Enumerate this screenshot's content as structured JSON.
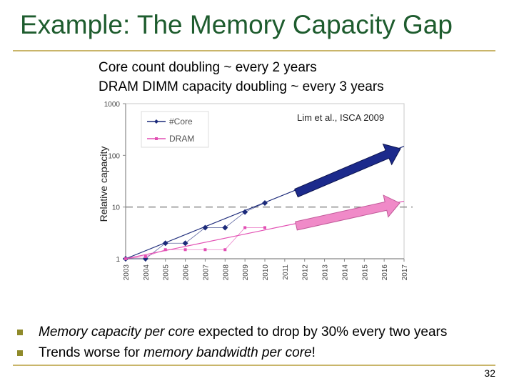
{
  "slide": {
    "title": "Example: The Memory Capacity Gap",
    "subtitle_line1": "Core count doubling ~ every 2 years",
    "subtitle_line2": "DRAM DIMM capacity doubling ~ every 3 years",
    "page_number": "32"
  },
  "bullets": [
    {
      "pre": "",
      "em": "Memory capacity per core",
      "post": " expected to drop by 30% every two years"
    },
    {
      "pre": "Trends worse for ",
      "em": "memory bandwidth per core",
      "post": "!"
    }
  ],
  "colors": {
    "title": "#1e5c2e",
    "core": "#1c2a7a",
    "dram": "#e24fb3",
    "rule": "#c9b56a",
    "bullet": "#8f8a2a"
  },
  "chart_data": {
    "type": "line",
    "title": "",
    "annotation": "Lim et al., ISCA 2009",
    "ylabel": "Relative capacity",
    "xlabel": "",
    "yscale": "log",
    "ylim": [
      1,
      1000
    ],
    "yticks": [
      "1",
      "10",
      "100",
      "1000"
    ],
    "x": [
      "2003",
      "2004",
      "2005",
      "2006",
      "2007",
      "2008",
      "2009",
      "2010",
      "2011",
      "2012",
      "2013",
      "2014",
      "2015",
      "2016",
      "2017"
    ],
    "series": [
      {
        "name": "#Core",
        "x": [
          "2003",
          "2004",
          "2005",
          "2006",
          "2007",
          "2008",
          "2009",
          "2010"
        ],
        "values": [
          1,
          1,
          2,
          2,
          4,
          4,
          8,
          12
        ],
        "trend_end": [
          "2017",
          150
        ]
      },
      {
        "name": "DRAM",
        "x": [
          "2003",
          "2004",
          "2005",
          "2006",
          "2007",
          "2008",
          "2009",
          "2010"
        ],
        "values": [
          1,
          1.1,
          1.5,
          1.5,
          1.5,
          1.5,
          4,
          4
        ],
        "trend_end": [
          "2017",
          13
        ]
      }
    ],
    "reference_line_y": 10,
    "legend": "top-left",
    "grid": false
  }
}
